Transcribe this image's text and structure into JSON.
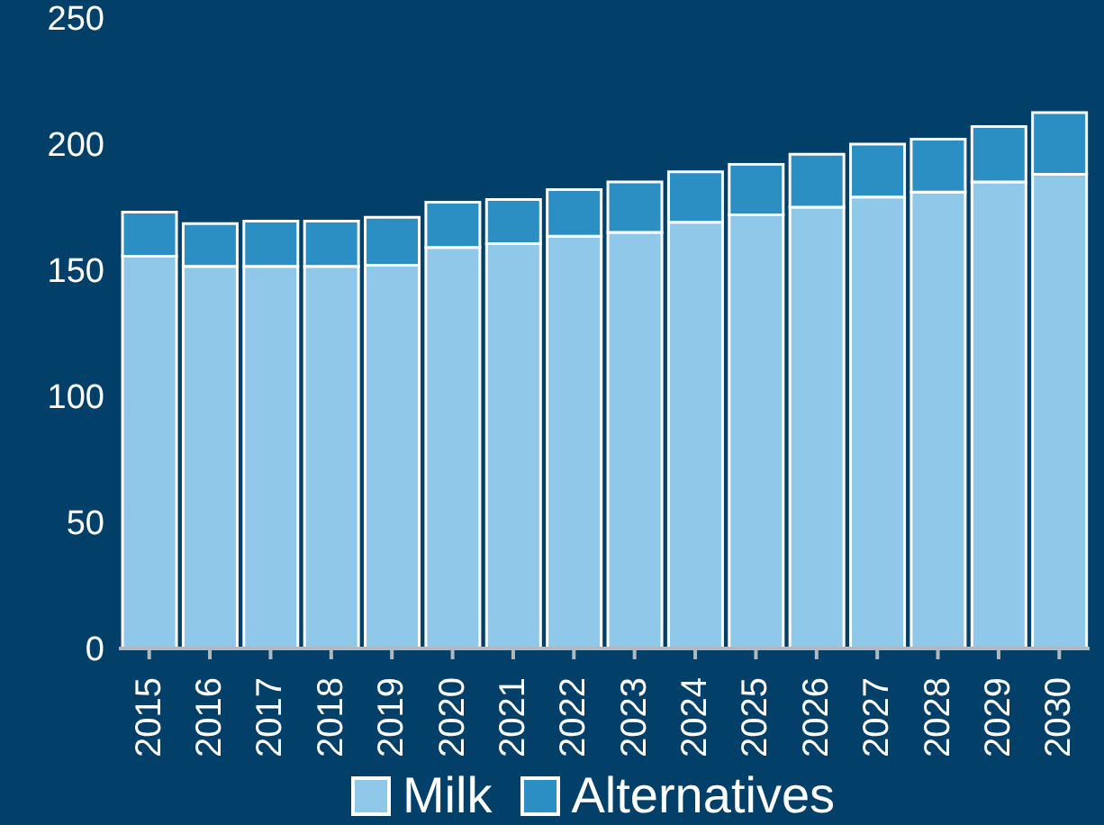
{
  "chart_data": {
    "type": "bar",
    "stacked": true,
    "categories": [
      "2015",
      "2016",
      "2017",
      "2018",
      "2019",
      "2020",
      "2021",
      "2022",
      "2023",
      "2024",
      "2025",
      "2026",
      "2027",
      "2028",
      "2029",
      "2030"
    ],
    "series": [
      {
        "name": "Milk",
        "color": "#8fc8e8",
        "values": [
          155.5,
          151.5,
          151.5,
          151.5,
          152,
          159,
          160.5,
          163.5,
          165,
          169,
          172,
          175,
          179,
          181,
          185,
          188
        ]
      },
      {
        "name": "Alternatives",
        "color": "#2b8fc3",
        "values": [
          17.5,
          17,
          18,
          18,
          19,
          18,
          17.5,
          18.5,
          20,
          20,
          20,
          21,
          21,
          21,
          22,
          24.5
        ]
      }
    ],
    "ylim": [
      0,
      250
    ],
    "yticks": [
      0,
      50,
      100,
      150,
      200,
      250
    ],
    "grid": false,
    "legend": "bottom"
  }
}
